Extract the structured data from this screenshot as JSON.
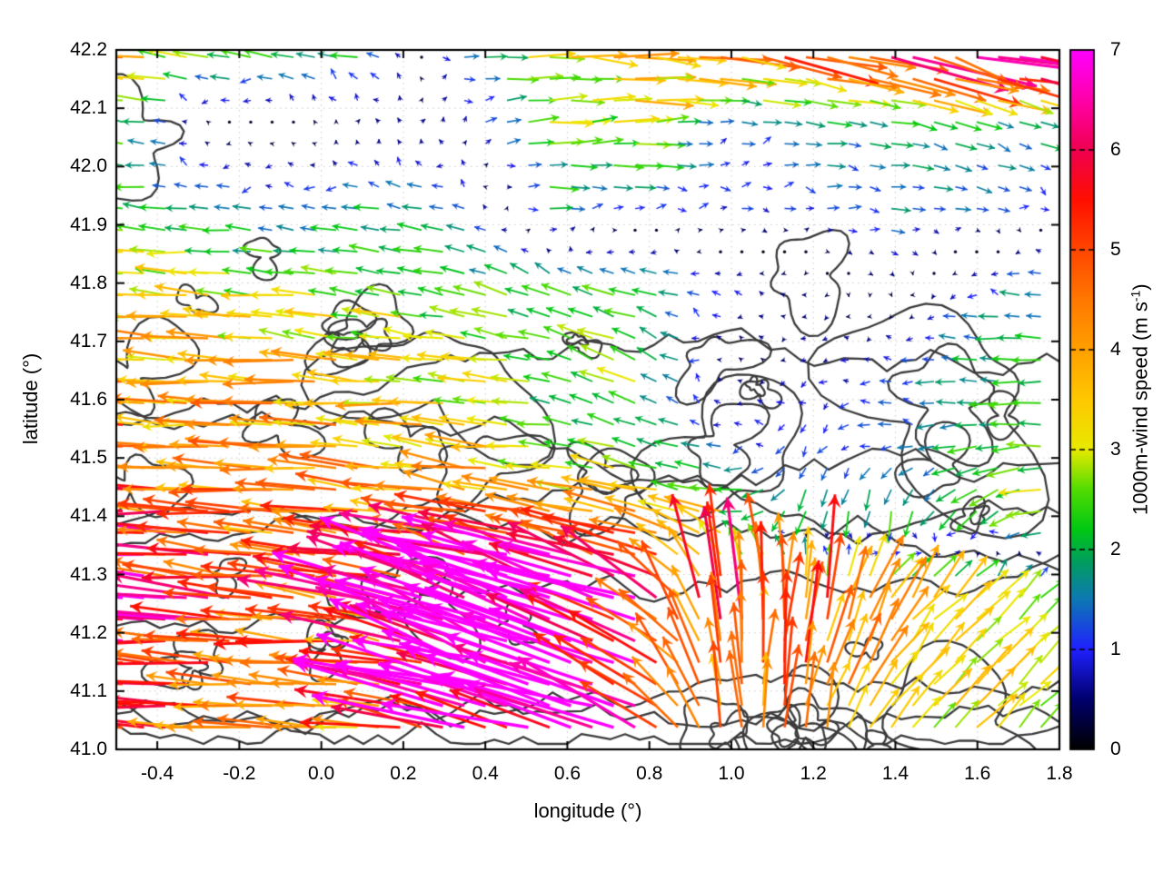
{
  "figure": {
    "background": "#ffffff"
  },
  "chart_data": {
    "type": "quiver",
    "title": "",
    "xlabel": "longitude (°)",
    "ylabel": "latitude (°)",
    "xlim": [
      -0.5,
      1.8
    ],
    "ylim": [
      41.0,
      42.2
    ],
    "xtick_values": [
      -0.4,
      -0.2,
      0.0,
      0.2,
      0.4,
      0.6,
      0.8,
      1.0,
      1.2,
      1.4,
      1.6,
      1.8
    ],
    "xtick_labels": [
      "-0.4",
      "-0.2",
      "0.0",
      "0.2",
      "0.4",
      "0.6",
      "0.8",
      "1.0",
      "1.2",
      "1.4",
      "1.6",
      "1.8"
    ],
    "ytick_values": [
      41.0,
      41.1,
      41.2,
      41.3,
      41.4,
      41.5,
      41.6,
      41.7,
      41.8,
      41.9,
      42.0,
      42.1,
      42.2
    ],
    "ytick_labels": [
      "41.0",
      "41.1",
      "41.2",
      "41.3",
      "41.4",
      "41.5",
      "41.6",
      "41.7",
      "41.8",
      "41.9",
      "42.0",
      "42.1",
      "42.2"
    ],
    "grid": "dotted",
    "grid_color": "#c6c6c6",
    "contour_color": "#3a3a3a",
    "colorbar": {
      "label_main": "1000m-wind speed (m s",
      "label_sup": "-1",
      "label_close": ")",
      "min": 0,
      "max": 7,
      "tick_values": [
        0,
        1,
        2,
        3,
        4,
        5,
        6,
        7
      ],
      "tick_labels": [
        "0",
        "1",
        "2",
        "3",
        "4",
        "5",
        "6",
        "7"
      ],
      "palette": [
        [
          0.0,
          "#000000"
        ],
        [
          0.5,
          "#00006e"
        ],
        [
          1.0,
          "#2020ff"
        ],
        [
          1.5,
          "#0e78b4"
        ],
        [
          1.9,
          "#00a05a"
        ],
        [
          2.2,
          "#00c814"
        ],
        [
          2.6,
          "#52dc02"
        ],
        [
          3.0,
          "#e8ea00"
        ],
        [
          3.5,
          "#ffc800"
        ],
        [
          4.0,
          "#ffa000"
        ],
        [
          4.5,
          "#ff7800"
        ],
        [
          5.0,
          "#ff4600"
        ],
        [
          5.5,
          "#ff0f00"
        ],
        [
          6.0,
          "#f00050"
        ],
        [
          6.5,
          "#ff00aa"
        ],
        [
          7.0,
          "#ff00ff"
        ]
      ]
    },
    "wind_field": {
      "units": "m s-1",
      "lon": [
        -0.5,
        -0.29,
        -0.08,
        0.13,
        0.34,
        0.55,
        0.76,
        0.97,
        1.18,
        1.39,
        1.6,
        1.8
      ],
      "lat": [
        41.0,
        41.13,
        41.27,
        41.4,
        41.53,
        41.67,
        41.8,
        41.93,
        42.07,
        42.2
      ],
      "uv": [
        [
          [
            -4.5,
            0
          ],
          [
            -4.5,
            0.3
          ],
          [
            -4,
            0.2
          ],
          [
            -3.8,
            0.3
          ],
          [
            -5.5,
            1
          ],
          [
            -6.3,
            2
          ],
          [
            -6,
            2.5
          ],
          [
            -1,
            4
          ],
          [
            0.5,
            4
          ],
          [
            2,
            2.5
          ],
          [
            2,
            2
          ],
          [
            1.8,
            1.8
          ]
        ],
        [
          [
            -5.5,
            0.2
          ],
          [
            -4.8,
            0.2
          ],
          [
            -4.2,
            0.3
          ],
          [
            -4,
            0.5
          ],
          [
            -6.5,
            2
          ],
          [
            -6.5,
            2.2
          ],
          [
            -5.8,
            2
          ],
          [
            -0.5,
            4.8
          ],
          [
            1,
            4.2
          ],
          [
            2.2,
            3
          ],
          [
            2.2,
            2.2
          ],
          [
            2,
            1.8
          ]
        ],
        [
          [
            -6.5,
            0.5
          ],
          [
            -5.5,
            0.5
          ],
          [
            -4.5,
            0.5
          ],
          [
            -5,
            0.8
          ],
          [
            -6.8,
            2.2
          ],
          [
            -6.8,
            2.5
          ],
          [
            -6.2,
            2
          ],
          [
            -0.3,
            5.2
          ],
          [
            0.2,
            5
          ],
          [
            2,
            3.2
          ],
          [
            2.2,
            2
          ],
          [
            1.5,
            1.5
          ]
        ],
        [
          [
            -5.2,
            0.3
          ],
          [
            -4.6,
            0.3
          ],
          [
            -4.4,
            0.3
          ],
          [
            -4.2,
            0.5
          ],
          [
            -4.5,
            0.8
          ],
          [
            -4.2,
            0.8
          ],
          [
            -4,
            0.8
          ],
          [
            -3.2,
            0.6
          ],
          [
            -0.5,
            -2
          ],
          [
            -0.3,
            -2.2
          ],
          [
            -1.5,
            -1.5
          ],
          [
            -3,
            -0.5
          ]
        ],
        [
          [
            -4.4,
            0.2
          ],
          [
            -4.2,
            0.2
          ],
          [
            -4,
            0.2
          ],
          [
            -3.8,
            0.3
          ],
          [
            -3.4,
            0.4
          ],
          [
            -2.4,
            0.3
          ],
          [
            -2,
            0.5
          ],
          [
            -1,
            0.2
          ],
          [
            -0.8,
            -0.8
          ],
          [
            -1.2,
            0
          ],
          [
            -2,
            -0.3
          ],
          [
            -2.6,
            0
          ]
        ],
        [
          [
            -3.8,
            0.2
          ],
          [
            -3.6,
            0.2
          ],
          [
            -3.5,
            0.3
          ],
          [
            -3.2,
            0.3
          ],
          [
            -2.8,
            0.3
          ],
          [
            -2.2,
            0.4
          ],
          [
            -2.5,
            1.2
          ],
          [
            -0.3,
            0.3
          ],
          [
            -0.5,
            -0.3
          ],
          [
            -1,
            0
          ],
          [
            -1.8,
            0.2
          ],
          [
            -2.2,
            0
          ]
        ],
        [
          [
            -3.2,
            0.2
          ],
          [
            -3,
            0.2
          ],
          [
            -2.6,
            0.3
          ],
          [
            -2.4,
            0.3
          ],
          [
            -2.2,
            0.6
          ],
          [
            -2,
            0.8
          ],
          [
            -2,
            0.5
          ],
          [
            -1,
            0.3
          ],
          [
            -0.4,
            -0.2
          ],
          [
            0.3,
            -0.3
          ],
          [
            -1,
            0
          ],
          [
            -1.8,
            0.2
          ]
        ],
        [
          [
            -2.4,
            0.2
          ],
          [
            -1.5,
            0.2
          ],
          [
            -1.2,
            0.2
          ],
          [
            -1.8,
            0.3
          ],
          [
            -1.5,
            0.3
          ],
          [
            1.8,
            0
          ],
          [
            1.2,
            -0.2
          ],
          [
            1,
            0
          ],
          [
            1,
            0.2
          ],
          [
            1.5,
            0
          ],
          [
            1.2,
            -0.2
          ],
          [
            0.8,
            -0.3
          ]
        ],
        [
          [
            -2.2,
            0.3
          ],
          [
            -0.1,
            0.1
          ],
          [
            0.05,
            0.15
          ],
          [
            0.1,
            0.5
          ],
          [
            0.2,
            0.6
          ],
          [
            2.5,
            0.2
          ],
          [
            3,
            0.2
          ],
          [
            1,
            0
          ],
          [
            1.5,
            -0.2
          ],
          [
            1.8,
            -0.3
          ],
          [
            1.5,
            -0.8
          ],
          [
            1.8,
            -0.5
          ]
        ],
        [
          [
            -4,
            0.3
          ],
          [
            -2.5,
            0.3
          ],
          [
            -2.2,
            0.5
          ],
          [
            -2,
            0.3
          ],
          [
            1.5,
            0
          ],
          [
            3.2,
            -0.2
          ],
          [
            3.8,
            -0.3
          ],
          [
            4.2,
            -0.5
          ],
          [
            5,
            -1
          ],
          [
            5.5,
            -1.2
          ],
          [
            6,
            -1.5
          ],
          [
            6.5,
            -1.5
          ]
        ]
      ]
    }
  }
}
